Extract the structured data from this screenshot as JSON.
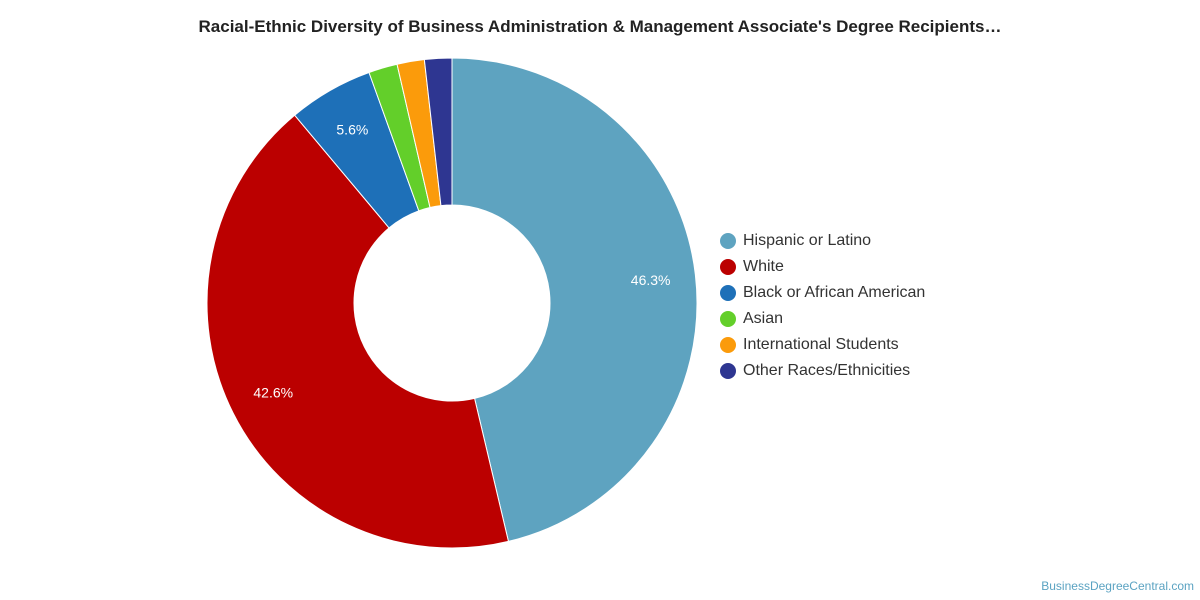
{
  "title": "Racial-Ethnic Diversity of Business Administration & Management Associate's Degree Recipients…",
  "credit": "BusinessDegreeCentral.com",
  "chart_data": {
    "type": "pie",
    "variant": "donut",
    "legend_position": "right",
    "slices": [
      {
        "name": "Hispanic or Latino",
        "value": 46.3,
        "label": "46.3%",
        "color": "#5ea3c0"
      },
      {
        "name": "White",
        "value": 42.6,
        "label": "42.6%",
        "color": "#bb0000"
      },
      {
        "name": "Black or African American",
        "value": 5.6,
        "label": "5.6%",
        "color": "#1e70b8"
      },
      {
        "name": "Asian",
        "value": 1.9,
        "label": "",
        "color": "#63cf2a"
      },
      {
        "name": "International Students",
        "value": 1.8,
        "label": "",
        "color": "#fb9b0b"
      },
      {
        "name": "Other Races/Ethnicities",
        "value": 1.8,
        "label": "",
        "color": "#2e3691"
      }
    ]
  }
}
